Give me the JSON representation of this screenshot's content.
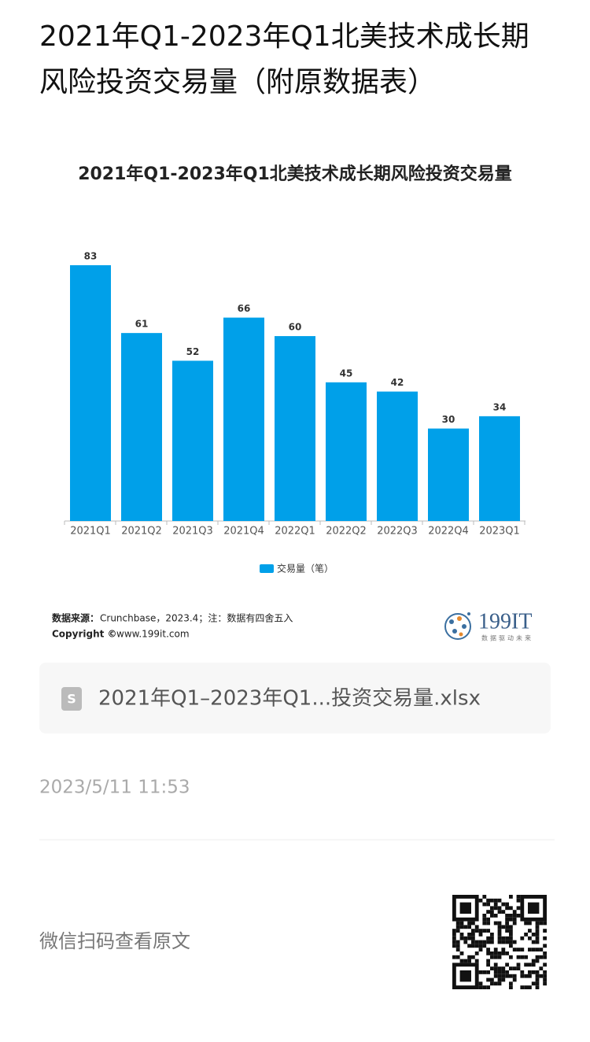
{
  "article": {
    "title": "2021年Q1-2023年Q1北美技术成长期风险投资交易量（附原数据表）",
    "attachment": "2021年Q1–2023年Q1...投资交易量.xlsx",
    "date": "2023/5/11 11:53",
    "footer": "微信扫码查看原文"
  },
  "chart_data": {
    "type": "bar",
    "title": "2021年Q1-2023年Q1北美技术成长期风险投资交易量",
    "categories": [
      "2021Q1",
      "2021Q2",
      "2021Q3",
      "2021Q4",
      "2022Q1",
      "2022Q2",
      "2022Q3",
      "2022Q4",
      "2023Q1"
    ],
    "series": [
      {
        "name": "交易量（笔）",
        "color": "#00a0e9",
        "values": [
          83,
          61,
          52,
          66,
          60,
          45,
          42,
          30,
          34
        ]
      }
    ],
    "ylim": [
      0,
      83
    ],
    "source_label": "数据来源：",
    "source": "Crunchbase，2023.4；注：数据有四舍五入",
    "copyright_label": "Copyright ©",
    "copyright": "www.199it.com",
    "logo": "199IT",
    "logo_tagline": "数据驱动未来"
  }
}
